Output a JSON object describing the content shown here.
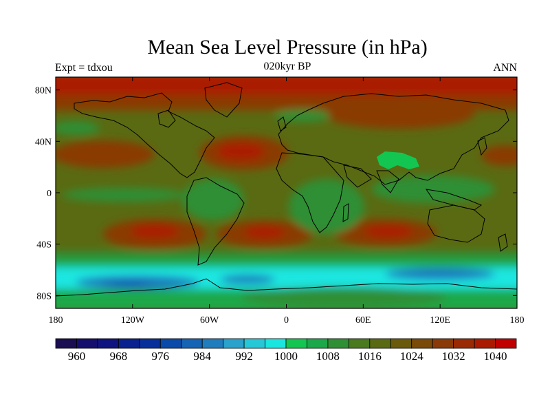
{
  "header": {
    "title": "Mean Sea Level Pressure (in hPa)",
    "left": "Expt = tdxou",
    "center": "020kyr BP",
    "right": "ANN"
  },
  "axes": {
    "lat_ticks": [
      "80N",
      "40N",
      "0",
      "40S",
      "80S"
    ],
    "lon_ticks": [
      "180",
      "120W",
      "60W",
      "0",
      "60E",
      "120E",
      "180"
    ]
  },
  "colorbar": {
    "colors": [
      "#1b0d52",
      "#150e6e",
      "#0f1480",
      "#0a2190",
      "#062f9c",
      "#0a4aa8",
      "#1563b4",
      "#1f7cbd",
      "#2aa2cc",
      "#26c8d8",
      "#1ae6e0",
      "#12c651",
      "#1aa84a",
      "#2f8f34",
      "#4a7a1d",
      "#5a6a12",
      "#6a5a0c",
      "#7a4a08",
      "#8a3a06",
      "#9a2a04",
      "#aa1a02",
      "#c00000"
    ],
    "labels": [
      "960",
      "968",
      "976",
      "984",
      "992",
      "1000",
      "1008",
      "1016",
      "1024",
      "1032",
      "1040"
    ]
  },
  "map_colors": {
    "ocean_mid": "#5a6a12",
    "high": "#8a3a06",
    "polar_high": "#aa1a02",
    "low_green": "#2f8f34",
    "southern_cyan": "#1ae6e0",
    "southern_blue": "#1f7cbd",
    "deep_blue": "#1563b4",
    "antarctic_green": "#1aa84a",
    "tibet_green": "#12c651"
  }
}
